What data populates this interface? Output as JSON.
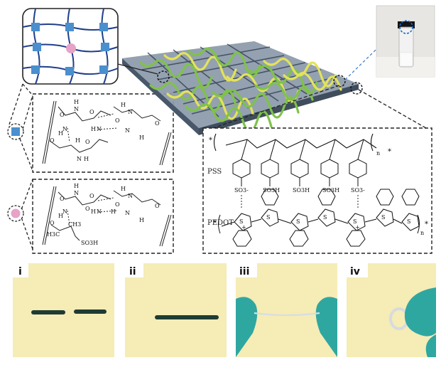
{
  "network_schematic": {
    "colors": {
      "crosslink_square": "#4a8fce",
      "crosslink_circle": "#e7a2c8",
      "chain": "#1f3f8c"
    }
  },
  "gel_mesh": {
    "colors": {
      "wave_green": "#7fc24a",
      "wave_yellow": "#e3e35a",
      "plate": "#5a6b7d"
    }
  },
  "vial_photo": {
    "label": ""
  },
  "pssh_structure": {
    "backbone_star": "*",
    "repeat_subscript": "n",
    "pss_label": "PSS",
    "pedot_label": "PEDOT",
    "sulfonate_groups": [
      "SO3-",
      "SO3H",
      "SO3H",
      "SO3H",
      "SO3-"
    ],
    "ring_atom": "S",
    "plus_sign": "+"
  },
  "hbond_blue": {
    "atoms": [
      "H",
      "N",
      "O",
      "O",
      "H",
      "N",
      "O",
      "N",
      "H",
      "N",
      "H",
      "O",
      "O",
      "H",
      "N",
      "O",
      "N",
      "H",
      "H"
    ]
  },
  "hbond_pink": {
    "atoms": [
      "H",
      "N",
      "O",
      "O",
      "H",
      "N",
      "O",
      "N",
      "H",
      "N",
      "H",
      "O",
      "O",
      "H",
      "N",
      "O",
      "H",
      "H3C",
      "CH3",
      "SO3H"
    ]
  },
  "photos": {
    "labels": [
      "i",
      "ii",
      "iii",
      "iv"
    ],
    "background": "#f5ecb6"
  }
}
